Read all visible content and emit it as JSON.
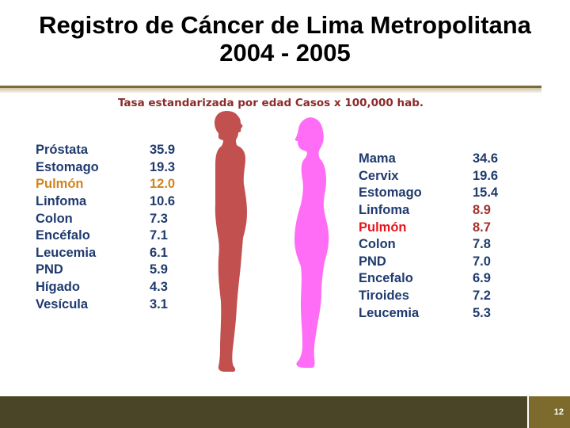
{
  "slide": {
    "title_line1": "Registro de Cáncer de Lima Metropolitana",
    "title_line2": "2004 - 2005",
    "subtitle": "Tasa estandarizada por edad Casos x 100,000 hab.",
    "page_number": "12"
  },
  "colors": {
    "text_default": "#1f3a6e",
    "male_highlight": "#d4821c",
    "female_highlight_red": "#e8151b",
    "female_highlight_darkred": "#a3312f",
    "male_silhouette": "#c1504f",
    "female_silhouette": "#ff6cf5",
    "footer": "#4b4528",
    "page_box": "#7d6b2d"
  },
  "male": [
    {
      "name": "Próstata",
      "value": "35.9"
    },
    {
      "name": "Estomago",
      "value": "19.3"
    },
    {
      "name": "Pulmón",
      "value": "12.0",
      "name_color": "#d4821c",
      "value_color": "#d4821c"
    },
    {
      "name": "Linfoma",
      "value": "10.6"
    },
    {
      "name": "Colon",
      "value": "7.3"
    },
    {
      "name": "Encéfalo",
      "value": "7.1"
    },
    {
      "name": "Leucemia",
      "value": "6.1"
    },
    {
      "name": "PND",
      "value": "5.9"
    },
    {
      "name": "Hígado",
      "value": "4.3"
    },
    {
      "name": "Vesícula",
      "value": "3.1"
    }
  ],
  "female": [
    {
      "name": "Mama",
      "value": "34.6"
    },
    {
      "name": "Cervix",
      "value": "19.6"
    },
    {
      "name": "Estomago",
      "value": "15.4"
    },
    {
      "name": "Linfoma",
      "value": "8.9",
      "value_color": "#a3312f"
    },
    {
      "name": "Pulmón",
      "value": "8.7",
      "name_color": "#e8151b",
      "value_color": "#a3312f"
    },
    {
      "name": "Colon",
      "value": "7.8"
    },
    {
      "name": "PND",
      "value": "7.0"
    },
    {
      "name": "Encefalo",
      "value": "6.9"
    },
    {
      "name": "Tiroides",
      "value": "7.2"
    },
    {
      "name": "Leucemia",
      "value": "5.3"
    }
  ]
}
